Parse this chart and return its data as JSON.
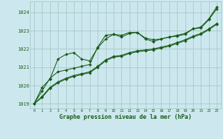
{
  "xlabel": "Graphe pression niveau de la mer (hPa)",
  "background_color": "#cce8ee",
  "grid_color": "#aacccc",
  "line_color": "#1a5c1a",
  "text_color": "#1a5c1a",
  "x_ticks": [
    0,
    1,
    2,
    3,
    4,
    5,
    6,
    7,
    8,
    9,
    10,
    11,
    12,
    13,
    14,
    15,
    16,
    17,
    18,
    19,
    20,
    21,
    22,
    23
  ],
  "ylim_min": 1018.75,
  "ylim_max": 1024.6,
  "yticks": [
    1019,
    1020,
    1021,
    1022,
    1023,
    1024
  ],
  "series": [
    [
      1019.0,
      1019.7,
      1020.4,
      1020.75,
      1020.85,
      1020.95,
      1021.05,
      1021.15,
      1022.1,
      1022.75,
      1022.8,
      1022.75,
      1022.9,
      1022.9,
      1022.6,
      1022.5,
      1022.55,
      1022.65,
      1022.75,
      1022.85,
      1023.1,
      1023.2,
      1023.65,
      1024.3
    ],
    [
      1019.0,
      1019.9,
      1020.35,
      1021.45,
      1021.7,
      1021.8,
      1021.45,
      1021.35,
      1022.05,
      1022.55,
      1022.8,
      1022.65,
      1022.85,
      1022.9,
      1022.55,
      1022.4,
      1022.55,
      1022.65,
      1022.7,
      1022.8,
      1023.1,
      1023.15,
      1023.6,
      1024.2
    ],
    [
      1019.0,
      1019.4,
      1019.9,
      1020.2,
      1020.4,
      1020.55,
      1020.65,
      1020.75,
      1021.05,
      1021.4,
      1021.6,
      1021.65,
      1021.8,
      1021.9,
      1021.95,
      1022.0,
      1022.1,
      1022.2,
      1022.35,
      1022.5,
      1022.7,
      1022.85,
      1023.1,
      1023.4
    ],
    [
      1019.0,
      1019.35,
      1019.85,
      1020.15,
      1020.35,
      1020.5,
      1020.6,
      1020.7,
      1021.0,
      1021.35,
      1021.55,
      1021.6,
      1021.75,
      1021.85,
      1021.9,
      1021.95,
      1022.05,
      1022.15,
      1022.3,
      1022.45,
      1022.65,
      1022.8,
      1023.05,
      1023.35
    ]
  ]
}
